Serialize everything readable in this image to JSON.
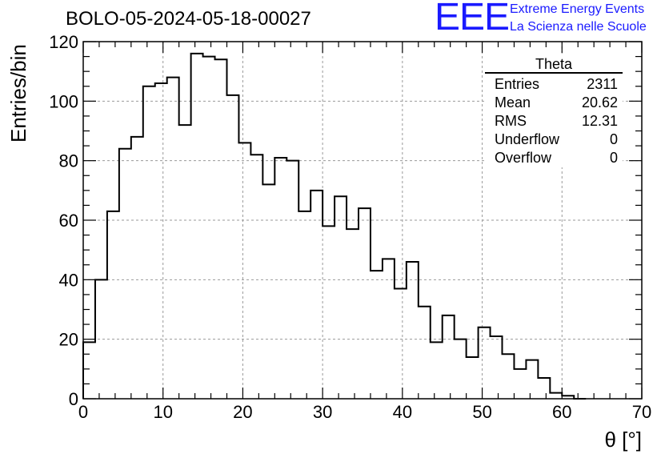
{
  "title": "BOLO-05-2024-05-18-00027",
  "logo": {
    "mark": "EEE",
    "line1": "Extreme Energy Events",
    "line2": "La Scienza nelle Scuole",
    "color": "#1a1aff"
  },
  "stats": {
    "name": "Theta",
    "rows": [
      {
        "label": "Entries",
        "value": "2311"
      },
      {
        "label": "Mean",
        "value": "20.62"
      },
      {
        "label": "RMS",
        "value": "12.31"
      },
      {
        "label": "Underflow",
        "value": "0"
      },
      {
        "label": "Overflow",
        "value": "0"
      }
    ]
  },
  "chart_data": {
    "type": "bar",
    "style": "step-histogram",
    "title": "BOLO-05-2024-05-18-00027",
    "xlabel": "θ [°]",
    "ylabel": "Entries/bin",
    "xlim": [
      0,
      70
    ],
    "ylim": [
      0,
      120
    ],
    "bin_width": 1.5,
    "x_ticks": [
      0,
      10,
      20,
      30,
      40,
      50,
      60,
      70
    ],
    "y_ticks": [
      0,
      20,
      40,
      60,
      80,
      100,
      120
    ],
    "grid": true,
    "bin_edges_start": 0,
    "values": [
      19,
      40,
      63,
      84,
      88,
      105,
      106,
      108,
      92,
      116,
      115,
      114,
      102,
      86,
      82,
      72,
      81,
      80,
      63,
      70,
      58,
      68,
      57,
      64,
      43,
      47,
      37,
      46,
      31,
      19,
      28,
      20,
      14,
      24,
      21,
      15,
      10,
      13,
      7,
      2,
      1,
      0
    ]
  }
}
